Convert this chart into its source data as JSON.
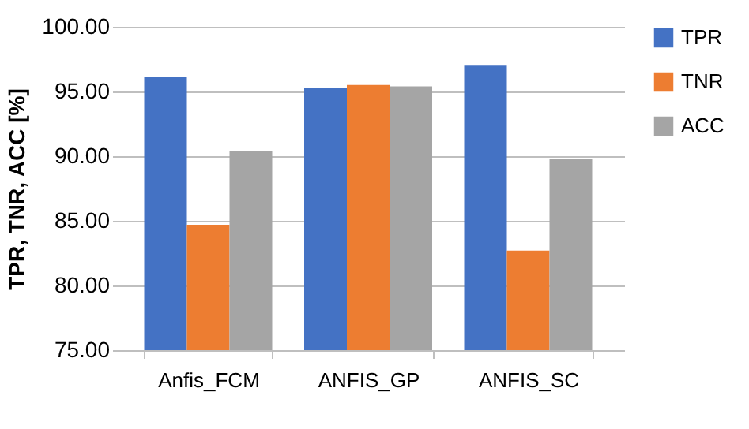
{
  "chart_data": {
    "type": "bar",
    "ylabel": "TPR, TNR, ACC [%]",
    "categories": [
      "Anfis_FCM",
      "ANFIS_GP",
      "ANFIS_SC"
    ],
    "series": [
      {
        "name": "TPR",
        "color": "#4472c4",
        "values": [
          96.1,
          95.3,
          97.0
        ]
      },
      {
        "name": "TNR",
        "color": "#ed7d31",
        "values": [
          84.7,
          95.5,
          82.7
        ]
      },
      {
        "name": "ACC",
        "color": "#a5a5a5",
        "values": [
          90.4,
          95.4,
          89.8
        ]
      }
    ],
    "ylim": [
      75,
      100
    ],
    "yticks": [
      {
        "value": 75,
        "label": "75.00"
      },
      {
        "value": 80,
        "label": "80.00"
      },
      {
        "value": 85,
        "label": "85.00"
      },
      {
        "value": 90,
        "label": "90.00"
      },
      {
        "value": 95,
        "label": "95.00"
      },
      {
        "value": 100,
        "label": "100.00"
      }
    ],
    "grid": "y",
    "legend": "right"
  }
}
